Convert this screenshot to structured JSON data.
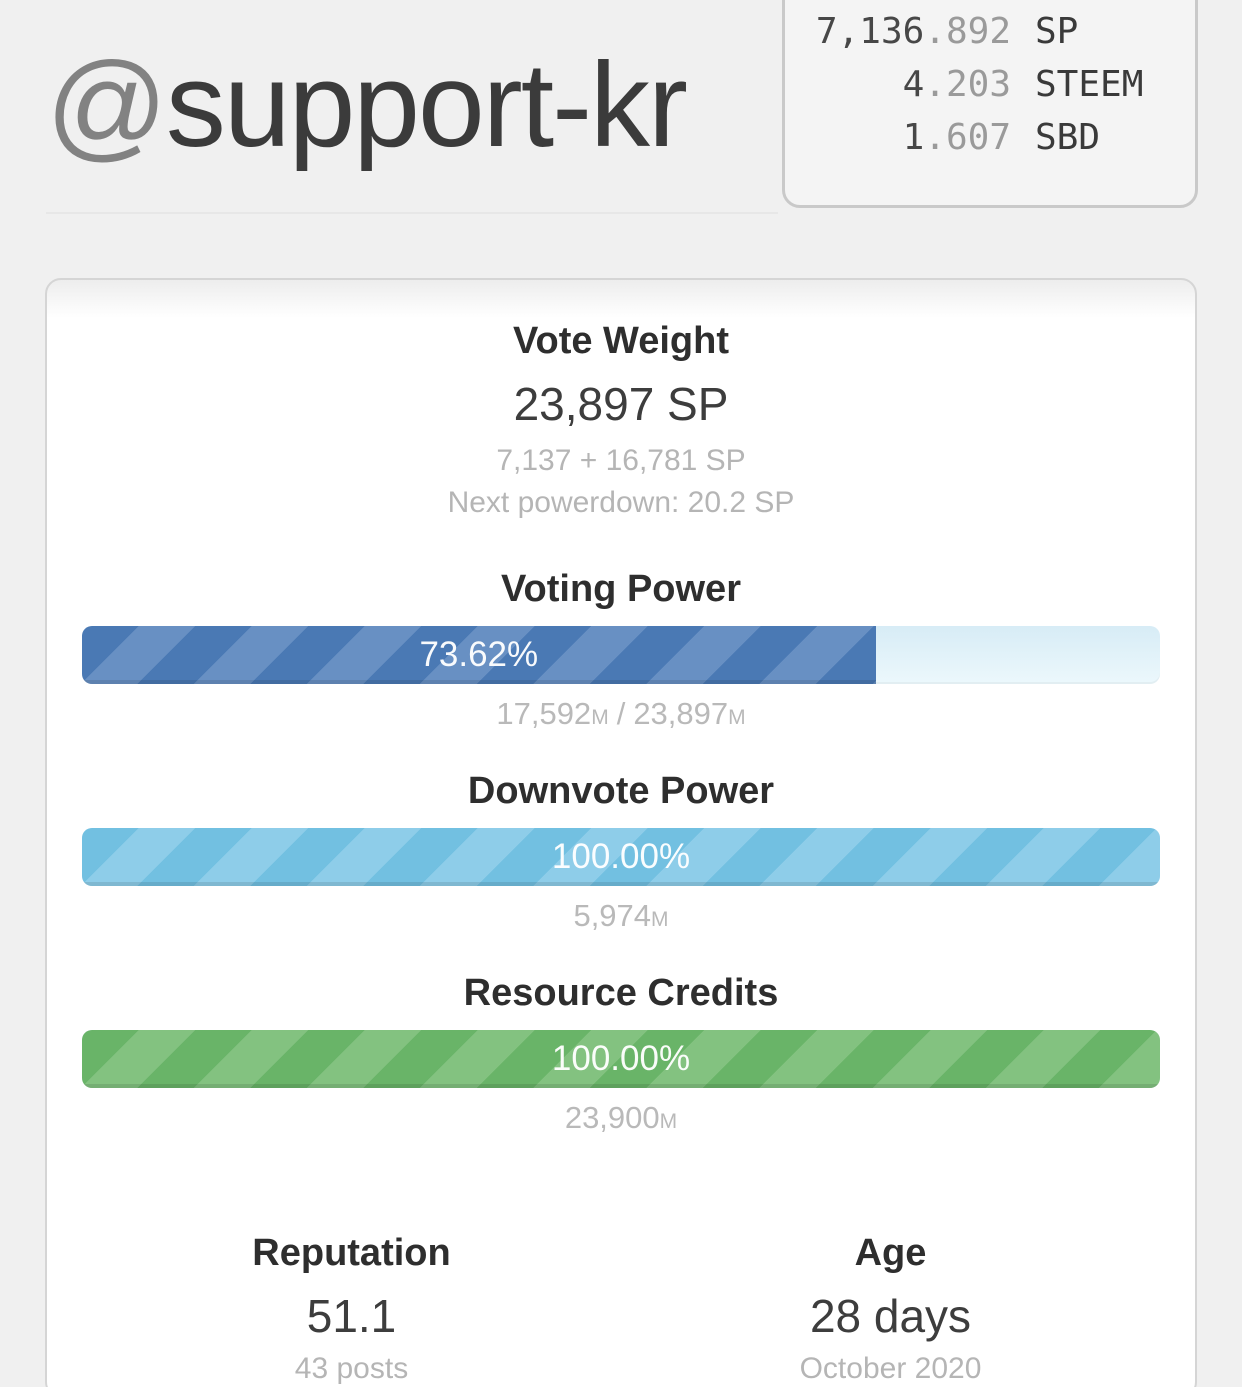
{
  "header": {
    "at_symbol": "@",
    "username": "support-kr",
    "balances": [
      {
        "amount_int": "7,136",
        "amount_dec": ".892",
        "unit": "SP"
      },
      {
        "amount_int": "4",
        "amount_dec": ".203",
        "unit": "STEEM"
      },
      {
        "amount_int": "1",
        "amount_dec": ".607",
        "unit": "SBD"
      }
    ]
  },
  "vote_weight": {
    "title": "Vote Weight",
    "value": "23,897 SP",
    "breakdown": "7,137 + 16,781 SP",
    "next_powerdown": "Next powerdown: 20.2 SP"
  },
  "voting_power": {
    "title": "Voting Power",
    "percent": 73.62,
    "percent_label": "73.62%",
    "current": "17,592",
    "max": "23,897",
    "mana_unit": "M",
    "separator": "/"
  },
  "downvote_power": {
    "title": "Downvote Power",
    "percent": 100,
    "percent_label": "100.00%",
    "current": "5,974",
    "mana_unit": "M"
  },
  "resource_credits": {
    "title": "Resource Credits",
    "percent": 100,
    "percent_label": "100.00%",
    "current": "23,900",
    "mana_unit": "M"
  },
  "reputation": {
    "title": "Reputation",
    "value": "51.1",
    "sub": "43 posts"
  },
  "age": {
    "title": "Age",
    "value": "28 days",
    "sub": "October 2020"
  },
  "colors": {
    "page_background": "#f0f0f0",
    "voting_power_bar": "#4a79b4",
    "voting_power_bar_stripe": "#6890c3",
    "downvote_bar": "#72c0e1",
    "downvote_bar_stripe": "#8ecde9",
    "resource_credits_bar": "#69b468",
    "resource_credits_bar_stripe": "#83c280",
    "bar_track": "#ddf0f8",
    "muted_text": "#b5b5b5"
  }
}
